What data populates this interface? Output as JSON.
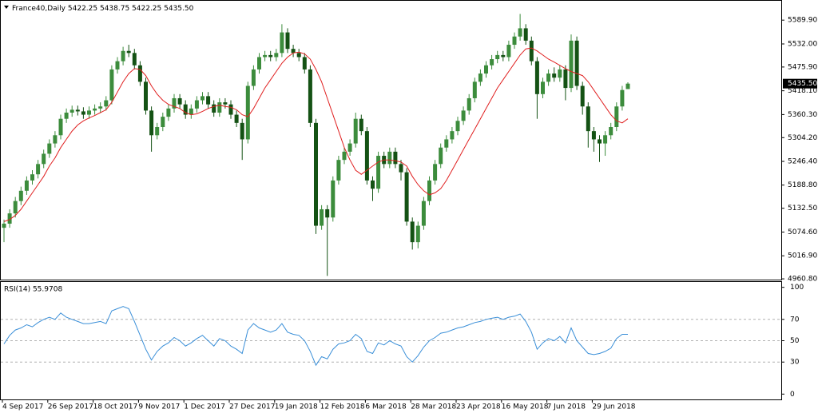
{
  "chart_data": [
    {
      "type": "candlestick",
      "title": "France40,Daily",
      "header_values": "5422.25 5438.75 5422.25 5435.50",
      "current_price_label": "5435.50",
      "categories": [
        "4 Sep 2017",
        null,
        null,
        null,
        null,
        null,
        null,
        null,
        "26 Sep 2017",
        null,
        null,
        null,
        null,
        null,
        null,
        null,
        "18 Oct 2017",
        null,
        null,
        null,
        null,
        null,
        null,
        null,
        "9 Nov 2017",
        null,
        null,
        null,
        null,
        null,
        null,
        null,
        "1 Dec 2017",
        null,
        null,
        null,
        null,
        null,
        null,
        null,
        "27 Dec 2017",
        null,
        null,
        null,
        null,
        null,
        null,
        null,
        "19 Jan 2018",
        null,
        null,
        null,
        null,
        null,
        null,
        null,
        "12 Feb 2018",
        null,
        null,
        null,
        null,
        null,
        null,
        null,
        "6 Mar 2018",
        null,
        null,
        null,
        null,
        null,
        null,
        null,
        "28 Mar 2018",
        null,
        null,
        null,
        null,
        null,
        null,
        null,
        "23 Apr 2018",
        null,
        null,
        null,
        null,
        null,
        null,
        null,
        "16 May 2018",
        null,
        null,
        null,
        null,
        null,
        null,
        null,
        "7 Jun 2018",
        null,
        null,
        null,
        null,
        null,
        null,
        null,
        "29 Jun 2018",
        null,
        null,
        null,
        null,
        null,
        null
      ],
      "open": [
        5085,
        5095,
        5120,
        5150,
        5175,
        5200,
        5215,
        5240,
        5265,
        5290,
        5310,
        5350,
        5365,
        5372,
        5368,
        5360,
        5370,
        5375,
        5380,
        5395,
        5470,
        5490,
        5515,
        5510,
        5480,
        5440,
        5370,
        5310,
        5330,
        5355,
        5375,
        5400,
        5385,
        5360,
        5375,
        5395,
        5405,
        5385,
        5365,
        5390,
        5385,
        5360,
        5340,
        5300,
        5430,
        5470,
        5500,
        5505,
        5500,
        5510,
        5560,
        5520,
        5510,
        5500,
        5470,
        5340,
        5090,
        5130,
        5110,
        5200,
        5250,
        5270,
        5290,
        5350,
        5320,
        5200,
        5180,
        5260,
        5240,
        5270,
        5240,
        5220,
        5100,
        5050,
        5090,
        5150,
        5200,
        5240,
        5280,
        5300,
        5320,
        5345,
        5370,
        5400,
        5440,
        5460,
        5480,
        5495,
        5505,
        5500,
        5530,
        5550,
        5570,
        5540,
        5490,
        5410,
        5440,
        5460,
        5450,
        5470,
        5425,
        5540,
        5430,
        5380,
        5320,
        5300,
        5290,
        5310,
        5330,
        5380,
        5422.25
      ],
      "high": [
        5105,
        5130,
        5160,
        5185,
        5210,
        5225,
        5250,
        5275,
        5300,
        5320,
        5360,
        5375,
        5382,
        5382,
        5378,
        5380,
        5385,
        5390,
        5405,
        5480,
        5500,
        5525,
        5530,
        5520,
        5490,
        5450,
        5380,
        5340,
        5365,
        5385,
        5410,
        5410,
        5395,
        5385,
        5405,
        5415,
        5415,
        5395,
        5400,
        5400,
        5395,
        5370,
        5350,
        5440,
        5480,
        5510,
        5515,
        5515,
        5520,
        5580,
        5570,
        5530,
        5520,
        5510,
        5480,
        5350,
        5140,
        5140,
        5210,
        5260,
        5280,
        5300,
        5365,
        5360,
        5330,
        5210,
        5270,
        5270,
        5280,
        5280,
        5250,
        5230,
        5110,
        5100,
        5160,
        5210,
        5250,
        5290,
        5310,
        5330,
        5355,
        5380,
        5410,
        5450,
        5470,
        5490,
        5505,
        5515,
        5515,
        5540,
        5560,
        5605,
        5580,
        5550,
        5500,
        5450,
        5470,
        5475,
        5480,
        5480,
        5555,
        5550,
        5440,
        5390,
        5330,
        5310,
        5320,
        5340,
        5390,
        5430,
        5438.75
      ],
      "low": [
        5050,
        5085,
        5110,
        5140,
        5165,
        5190,
        5205,
        5230,
        5255,
        5280,
        5300,
        5340,
        5355,
        5358,
        5350,
        5350,
        5360,
        5365,
        5370,
        5385,
        5460,
        5480,
        5500,
        5470,
        5430,
        5360,
        5270,
        5300,
        5320,
        5345,
        5365,
        5375,
        5350,
        5350,
        5365,
        5385,
        5375,
        5355,
        5355,
        5375,
        5350,
        5330,
        5250,
        5290,
        5420,
        5460,
        5490,
        5490,
        5490,
        5500,
        5510,
        5500,
        5490,
        5460,
        5330,
        5070,
        5080,
        4968,
        5100,
        5190,
        5240,
        5260,
        5280,
        5310,
        5190,
        5150,
        5170,
        5230,
        5230,
        5230,
        5200,
        5090,
        5032,
        5035,
        5080,
        5140,
        5190,
        5230,
        5270,
        5290,
        5310,
        5335,
        5360,
        5390,
        5430,
        5450,
        5470,
        5485,
        5490,
        5490,
        5520,
        5540,
        5530,
        5480,
        5350,
        5400,
        5430,
        5440,
        5440,
        5395,
        5415,
        5420,
        5360,
        5280,
        5270,
        5245,
        5260,
        5300,
        5320,
        5370,
        5422.25
      ],
      "close": [
        5095,
        5120,
        5150,
        5175,
        5200,
        5215,
        5240,
        5265,
        5290,
        5310,
        5350,
        5365,
        5372,
        5368,
        5360,
        5370,
        5375,
        5380,
        5395,
        5470,
        5490,
        5515,
        5510,
        5480,
        5440,
        5370,
        5310,
        5330,
        5355,
        5375,
        5400,
        5385,
        5360,
        5375,
        5395,
        5405,
        5385,
        5365,
        5390,
        5385,
        5360,
        5340,
        5300,
        5430,
        5470,
        5500,
        5505,
        5500,
        5510,
        5560,
        5520,
        5510,
        5500,
        5470,
        5340,
        5090,
        5130,
        5110,
        5200,
        5250,
        5270,
        5290,
        5350,
        5320,
        5200,
        5180,
        5260,
        5240,
        5270,
        5240,
        5220,
        5100,
        5050,
        5090,
        5150,
        5200,
        5240,
        5280,
        5300,
        5320,
        5345,
        5370,
        5400,
        5440,
        5460,
        5480,
        5495,
        5505,
        5500,
        5530,
        5550,
        5570,
        5540,
        5490,
        5410,
        5440,
        5460,
        5450,
        5470,
        5425,
        5540,
        5430,
        5380,
        5320,
        5300,
        5290,
        5310,
        5330,
        5380,
        5420,
        5435.5
      ],
      "up_color": "#3c8c3c",
      "down_color": "#145214",
      "overlay": {
        "color": "#e02020",
        "values": [
          5100,
          5105,
          5115,
          5130,
          5150,
          5170,
          5190,
          5210,
          5235,
          5255,
          5280,
          5300,
          5320,
          5335,
          5345,
          5352,
          5358,
          5365,
          5372,
          5390,
          5415,
          5440,
          5460,
          5472,
          5470,
          5455,
          5430,
          5410,
          5395,
          5385,
          5380,
          5375,
          5365,
          5360,
          5362,
          5368,
          5375,
          5380,
          5383,
          5380,
          5378,
          5372,
          5360,
          5355,
          5375,
          5400,
          5425,
          5445,
          5465,
          5485,
          5500,
          5510,
          5512,
          5508,
          5495,
          5470,
          5440,
          5400,
          5360,
          5320,
          5280,
          5250,
          5225,
          5215,
          5225,
          5235,
          5245,
          5250,
          5250,
          5248,
          5245,
          5235,
          5210,
          5190,
          5175,
          5165,
          5170,
          5180,
          5200,
          5225,
          5250,
          5275,
          5300,
          5325,
          5350,
          5375,
          5400,
          5425,
          5445,
          5465,
          5485,
          5505,
          5520,
          5522,
          5515,
          5505,
          5495,
          5488,
          5480,
          5472,
          5465,
          5460,
          5455,
          5440,
          5420,
          5400,
          5380,
          5360,
          5345,
          5340,
          5350
        ]
      },
      "ylim": [
        4959,
        5633
      ],
      "yticks": [
        {
          "value": 4960.8,
          "label": "4960.80"
        },
        {
          "value": 5016.9,
          "label": "5016.90"
        },
        {
          "value": 5074.6,
          "label": "5074.60"
        },
        {
          "value": 5132.5,
          "label": "5132.50"
        },
        {
          "value": 5188.8,
          "label": "5188.80"
        },
        {
          "value": 5246.4,
          "label": "5246.40"
        },
        {
          "value": 5304.2,
          "label": "5304.20"
        },
        {
          "value": 5360.3,
          "label": "5360.30"
        },
        {
          "value": 5418.1,
          "label": "5418.10"
        },
        {
          "value": 5475.9,
          "label": "5475.90"
        },
        {
          "value": 5532,
          "label": "5532.00"
        },
        {
          "value": 5589.9,
          "label": "5589.90"
        }
      ]
    },
    {
      "type": "line",
      "title": "RSI(14) 55.9708",
      "color": "#3a8fd8",
      "values": [
        47,
        55,
        60,
        62,
        65,
        63,
        67,
        70,
        72,
        70,
        76,
        72,
        70,
        68,
        66,
        66,
        67,
        68,
        66,
        78,
        80,
        82,
        80,
        68,
        55,
        42,
        32,
        40,
        45,
        48,
        53,
        50,
        45,
        48,
        52,
        55,
        50,
        45,
        52,
        50,
        45,
        42,
        38,
        60,
        66,
        62,
        60,
        58,
        60,
        66,
        58,
        56,
        55,
        50,
        40,
        27,
        35,
        33,
        42,
        47,
        48,
        50,
        56,
        52,
        40,
        38,
        48,
        46,
        50,
        47,
        45,
        35,
        30,
        36,
        44,
        50,
        53,
        57,
        58,
        60,
        62,
        63,
        65,
        67,
        68,
        70,
        71,
        72,
        70,
        72,
        73,
        75,
        68,
        58,
        42,
        48,
        52,
        50,
        54,
        48,
        62,
        50,
        44,
        38,
        37,
        38,
        40,
        43,
        52,
        56,
        55.9708
      ],
      "ylim": [
        -5,
        105
      ],
      "yticks": [
        0,
        30,
        50,
        70,
        100
      ],
      "levels": [
        30,
        50,
        70
      ]
    }
  ]
}
